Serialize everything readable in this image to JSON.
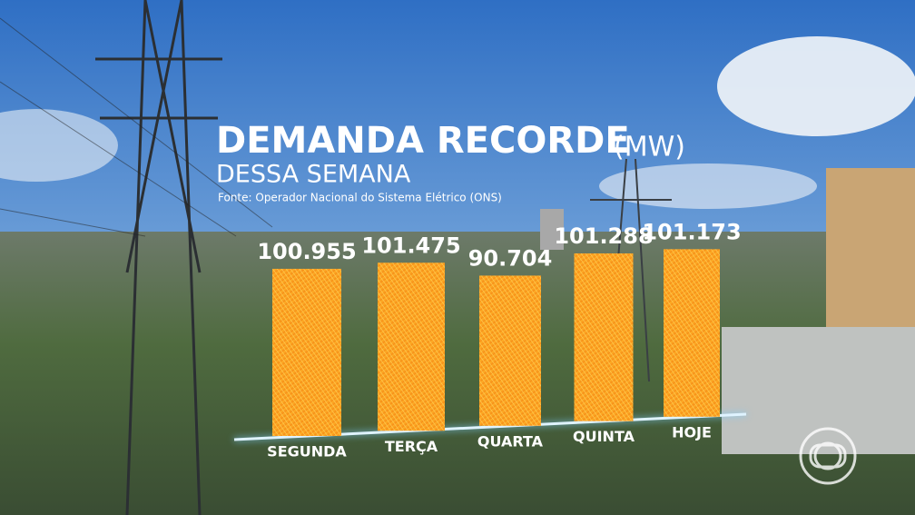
{
  "chart_data": {
    "type": "bar",
    "title": "DEMANDA RECORDE",
    "unit": "(MW)",
    "subtitle": "DESSA SEMANA",
    "source": "Fonte: Operador Nacional do Sistema Elétrico (ONS)",
    "categories": [
      "SEGUNDA",
      "TERÇA",
      "QUARTA",
      "QUINTA",
      "HOJE"
    ],
    "values": [
      100955,
      101475,
      90704,
      101288,
      101173
    ],
    "value_labels": [
      "100.955",
      "101.475",
      "90.704",
      "101.288",
      "101.173"
    ],
    "color": "#f7a21b"
  }
}
